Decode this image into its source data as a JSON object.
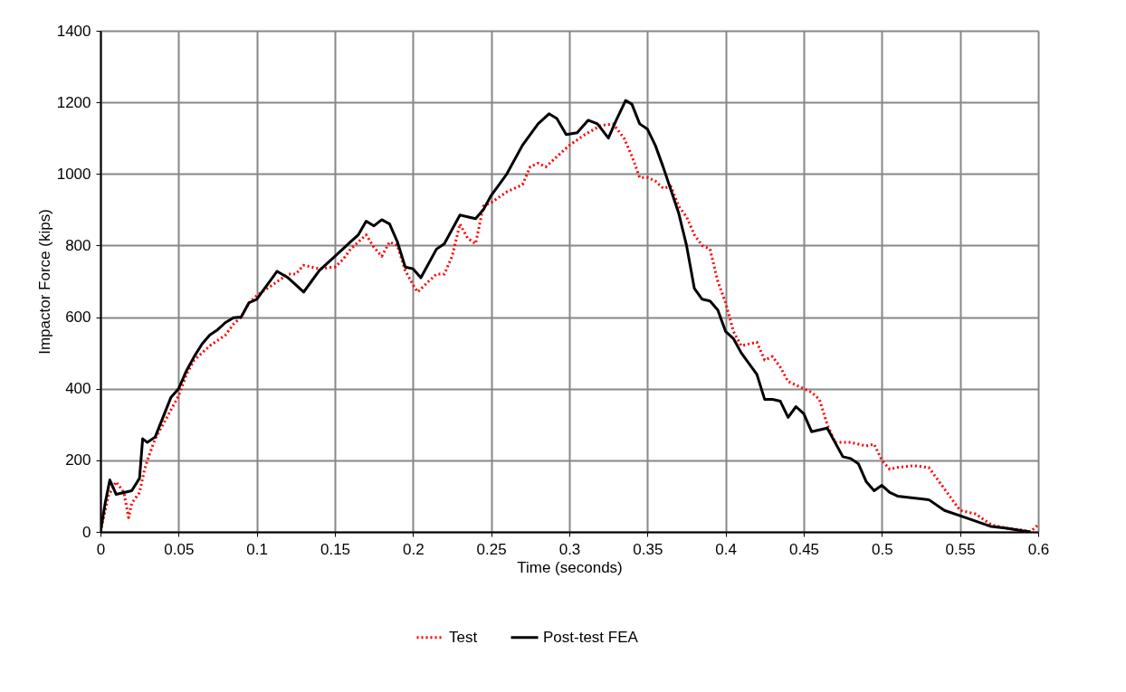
{
  "chart_data": {
    "type": "line",
    "xlabel": "Time (seconds)",
    "ylabel": "Impactor Force (kips)",
    "xlim": [
      0,
      0.6
    ],
    "xticks": [
      0,
      0.05,
      0.1,
      0.15,
      0.2,
      0.25,
      0.3,
      0.35,
      0.4,
      0.45,
      0.5,
      0.55,
      0.6
    ],
    "ylim": [
      0,
      1400
    ],
    "yticks": [
      0,
      200,
      400,
      600,
      800,
      1000,
      1200,
      1400
    ],
    "grid": true,
    "legend": "bottom",
    "marker": "none",
    "series": [
      {
        "name": "Test",
        "color": "#ff0000",
        "line_style": "dotted",
        "x": [
          0,
          0.005,
          0.01,
          0.015,
          0.018,
          0.02,
          0.025,
          0.028,
          0.03,
          0.035,
          0.04,
          0.045,
          0.05,
          0.055,
          0.06,
          0.07,
          0.08,
          0.085,
          0.09,
          0.095,
          0.1,
          0.11,
          0.12,
          0.125,
          0.13,
          0.14,
          0.15,
          0.155,
          0.16,
          0.17,
          0.175,
          0.18,
          0.185,
          0.19,
          0.195,
          0.2,
          0.203,
          0.21,
          0.215,
          0.22,
          0.225,
          0.23,
          0.235,
          0.24,
          0.245,
          0.25,
          0.26,
          0.265,
          0.27,
          0.275,
          0.28,
          0.285,
          0.29,
          0.3,
          0.31,
          0.32,
          0.328,
          0.335,
          0.34,
          0.345,
          0.35,
          0.355,
          0.36,
          0.365,
          0.37,
          0.375,
          0.38,
          0.385,
          0.39,
          0.395,
          0.4,
          0.405,
          0.41,
          0.42,
          0.425,
          0.43,
          0.435,
          0.44,
          0.445,
          0.45,
          0.455,
          0.46,
          0.465,
          0.47,
          0.48,
          0.485,
          0.49,
          0.495,
          0.5,
          0.505,
          0.51,
          0.52,
          0.53,
          0.535,
          0.54,
          0.545,
          0.55,
          0.56,
          0.57,
          0.58,
          0.59,
          0.595,
          0.6
        ],
        "values": [
          0,
          100,
          140,
          110,
          40,
          80,
          110,
          170,
          200,
          260,
          300,
          340,
          380,
          440,
          480,
          520,
          550,
          580,
          600,
          640,
          660,
          690,
          720,
          720,
          745,
          735,
          740,
          760,
          790,
          830,
          795,
          770,
          810,
          800,
          730,
          690,
          670,
          700,
          720,
          720,
          770,
          860,
          820,
          805,
          910,
          920,
          950,
          960,
          970,
          1020,
          1030,
          1020,
          1040,
          1080,
          1110,
          1135,
          1140,
          1100,
          1050,
          990,
          990,
          980,
          960,
          965,
          910,
          880,
          830,
          800,
          790,
          700,
          640,
          560,
          520,
          530,
          480,
          490,
          460,
          420,
          410,
          400,
          390,
          370,
          300,
          250,
          250,
          245,
          240,
          245,
          200,
          175,
          180,
          185,
          180,
          150,
          120,
          90,
          60,
          50,
          20,
          10,
          5,
          0,
          20
        ]
      },
      {
        "name": "Post-test FEA",
        "color": "#000000",
        "line_style": "solid",
        "x": [
          0,
          0.003,
          0.006,
          0.01,
          0.015,
          0.02,
          0.025,
          0.027,
          0.03,
          0.035,
          0.04,
          0.045,
          0.05,
          0.055,
          0.06,
          0.065,
          0.07,
          0.075,
          0.08,
          0.085,
          0.09,
          0.095,
          0.1,
          0.105,
          0.11,
          0.113,
          0.12,
          0.125,
          0.13,
          0.135,
          0.14,
          0.15,
          0.16,
          0.165,
          0.17,
          0.175,
          0.18,
          0.185,
          0.19,
          0.195,
          0.2,
          0.205,
          0.21,
          0.215,
          0.22,
          0.23,
          0.235,
          0.24,
          0.245,
          0.25,
          0.26,
          0.27,
          0.28,
          0.287,
          0.292,
          0.298,
          0.305,
          0.312,
          0.318,
          0.325,
          0.33,
          0.336,
          0.34,
          0.345,
          0.35,
          0.355,
          0.36,
          0.37,
          0.375,
          0.38,
          0.385,
          0.39,
          0.395,
          0.4,
          0.405,
          0.41,
          0.42,
          0.425,
          0.43,
          0.435,
          0.44,
          0.445,
          0.45,
          0.455,
          0.46,
          0.465,
          0.475,
          0.48,
          0.485,
          0.49,
          0.495,
          0.5,
          0.505,
          0.51,
          0.52,
          0.53,
          0.54,
          0.55,
          0.56,
          0.57,
          0.58,
          0.59,
          0.595
        ],
        "values": [
          0,
          80,
          145,
          105,
          110,
          115,
          150,
          260,
          250,
          265,
          320,
          375,
          400,
          450,
          490,
          525,
          550,
          565,
          585,
          598,
          600,
          640,
          650,
          680,
          710,
          728,
          710,
          690,
          670,
          700,
          730,
          770,
          810,
          830,
          868,
          855,
          872,
          860,
          810,
          740,
          735,
          710,
          750,
          790,
          805,
          885,
          880,
          875,
          900,
          940,
          1000,
          1080,
          1140,
          1168,
          1155,
          1110,
          1115,
          1150,
          1140,
          1100,
          1150,
          1205,
          1195,
          1140,
          1125,
          1080,
          1020,
          890,
          800,
          680,
          650,
          645,
          620,
          560,
          540,
          500,
          440,
          370,
          370,
          365,
          320,
          350,
          330,
          280,
          285,
          290,
          210,
          205,
          190,
          140,
          115,
          130,
          110,
          100,
          95,
          90,
          60,
          45,
          30,
          15,
          10,
          3,
          0
        ]
      }
    ]
  }
}
